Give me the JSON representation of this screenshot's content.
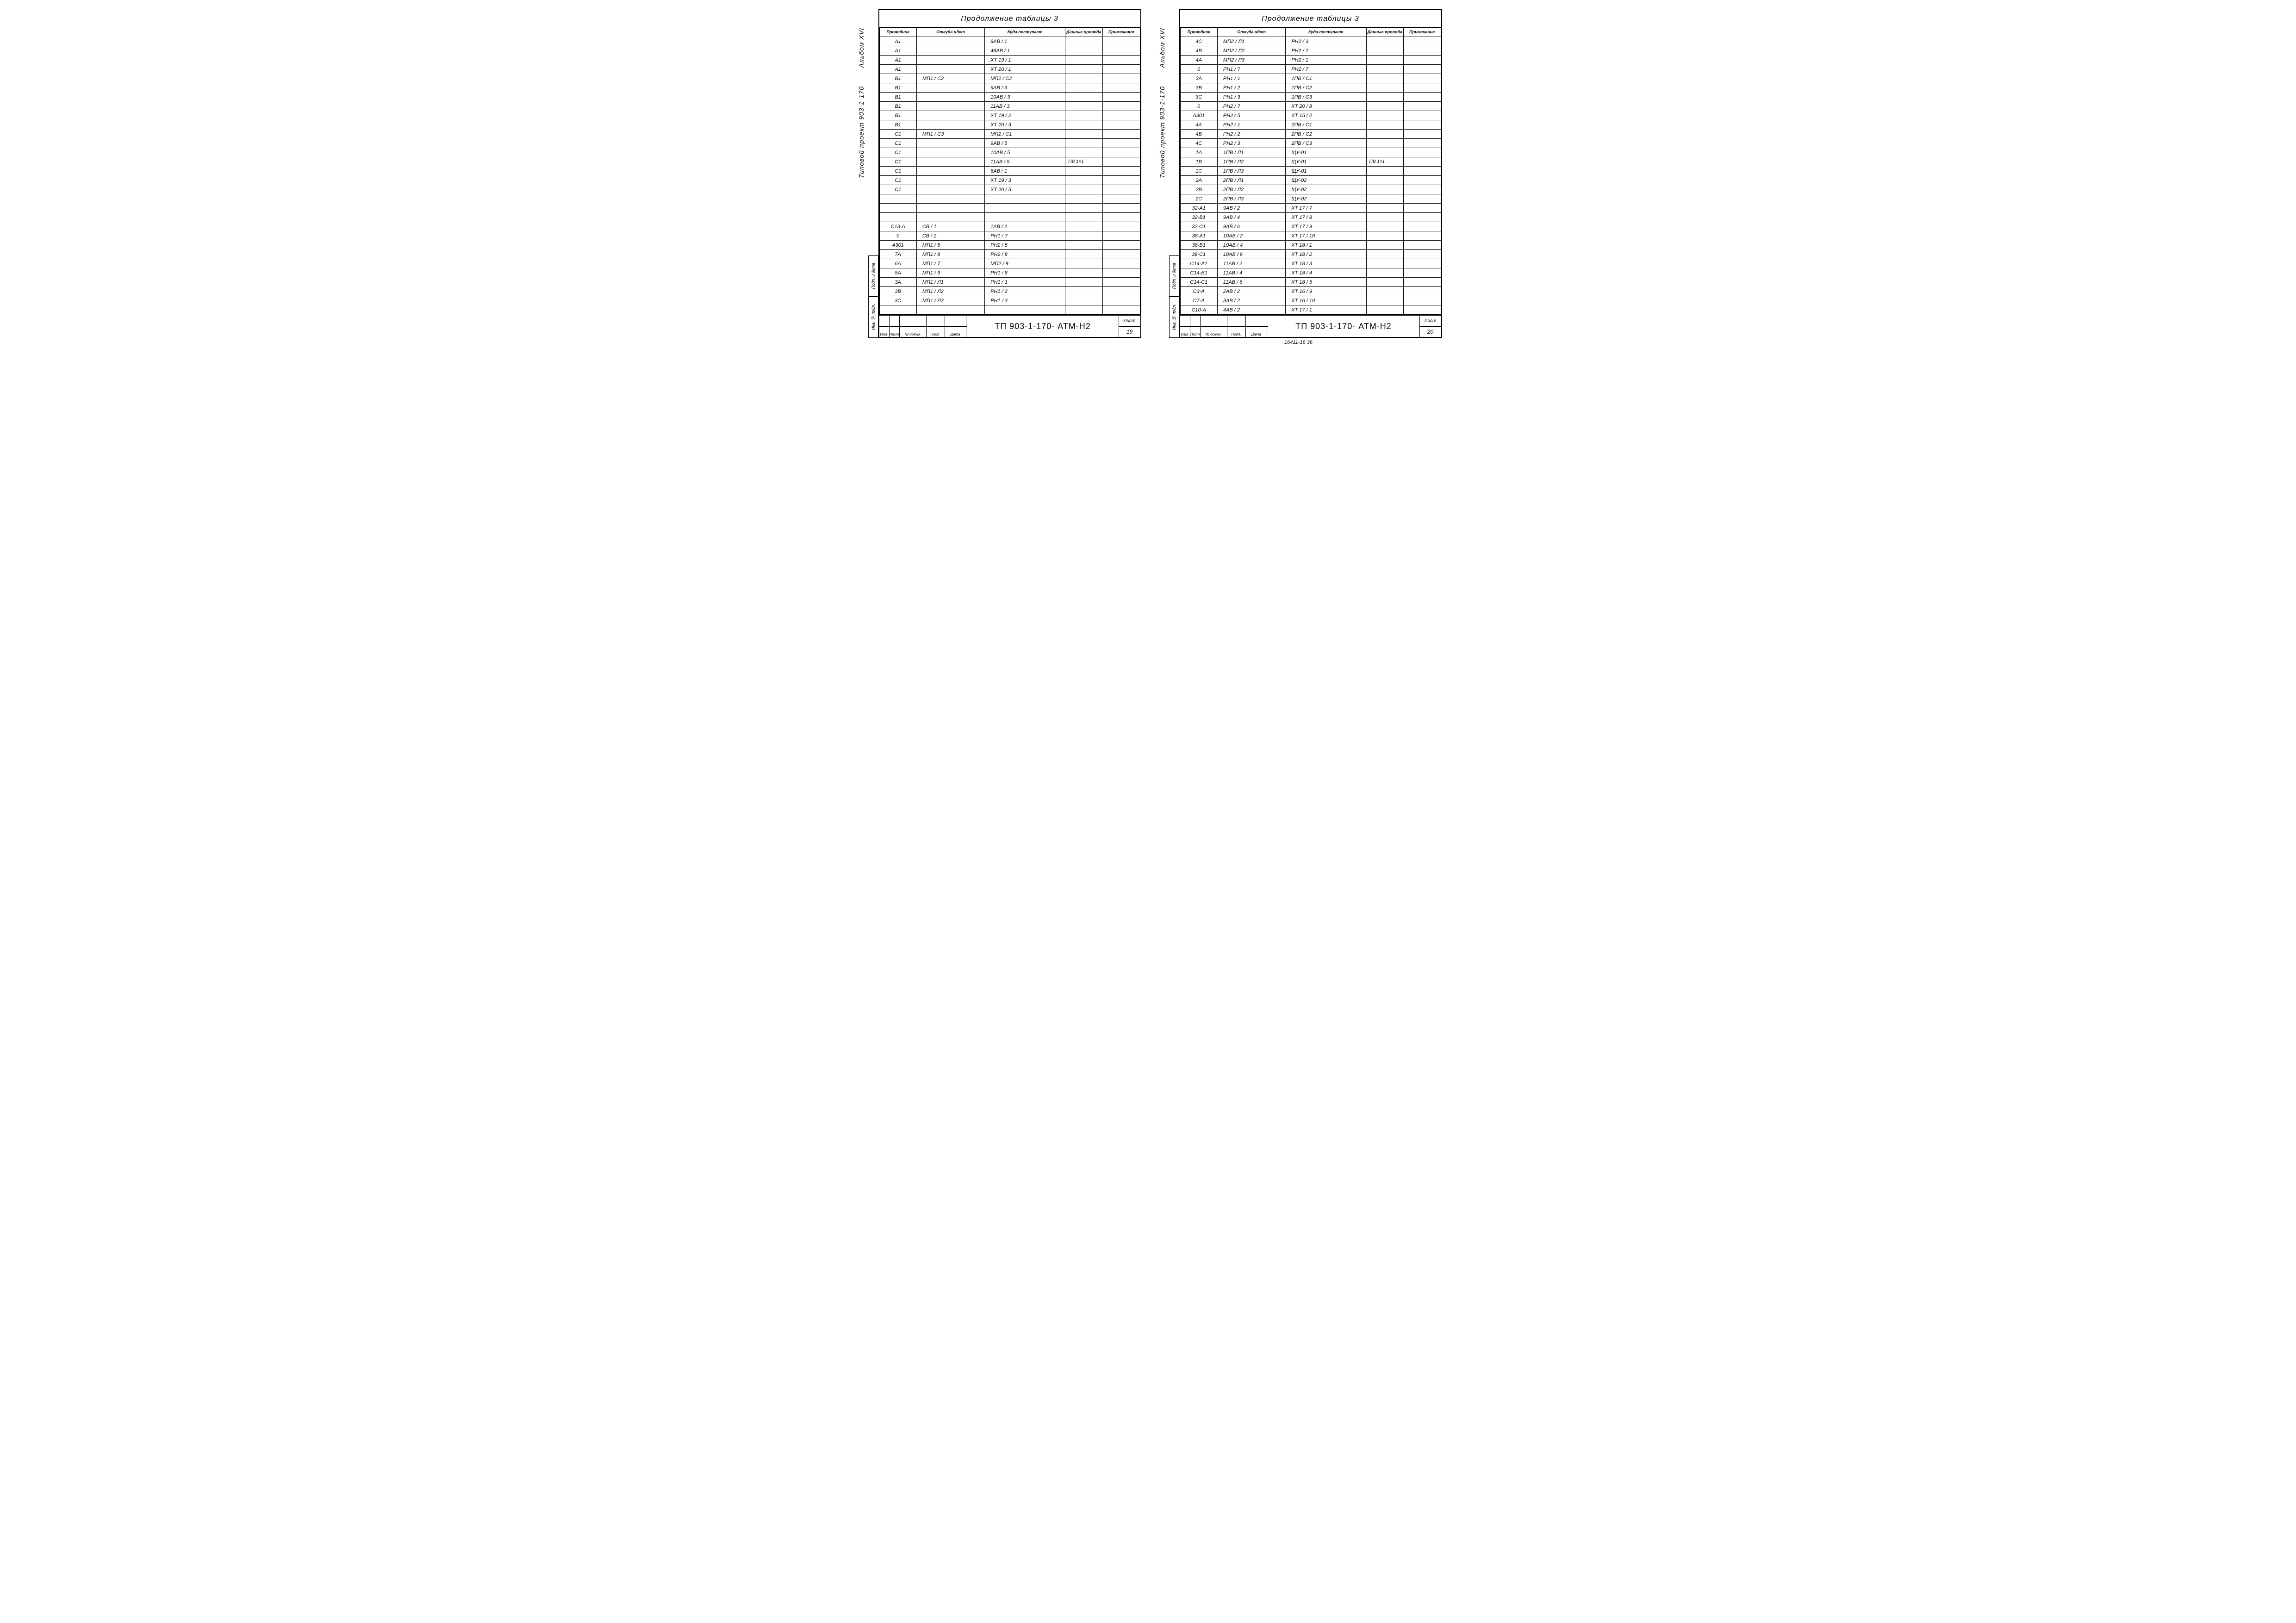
{
  "title": "Продолжение таблицы 3",
  "headers": [
    "Проводник",
    "Откуда идет",
    "Куда поступает",
    "Данные провода",
    "Примечания"
  ],
  "headers2": [
    "Проводник",
    "Откуда идет",
    "Куда поступает",
    "Данные провода",
    "Примечание"
  ],
  "side_album": "Альбом   XVI",
  "side_project": "Типовой проект 903-1-170",
  "side_box1": "Подп. и дата",
  "side_box2": "Инв. № подл.",
  "stamp_cells": [
    "Изм.",
    "Лист",
    "№ докум.",
    "Подп.",
    "Дата"
  ],
  "stamp_code": "ТП 903-1-170-   АТМ-Н2",
  "stamp_list": "Лист",
  "footer_note": "16411-16   36",
  "left": {
    "page": "19",
    "rows": [
      [
        "А1",
        "",
        "8АВ / 1",
        "",
        ""
      ],
      [
        "А1",
        "",
        "48АВ / 1",
        "",
        ""
      ],
      [
        "А1",
        "",
        "XT 19 / 1",
        "",
        ""
      ],
      [
        "А1",
        "",
        "XT 20 / 1",
        "",
        ""
      ],
      [
        "В1",
        "МП1 / С2",
        "МП2 / С2",
        "",
        ""
      ],
      [
        "В1",
        "",
        "9АВ / 3",
        "",
        ""
      ],
      [
        "В1",
        "",
        "10АВ / 3",
        "",
        ""
      ],
      [
        "В1",
        "",
        "11АВ / 3",
        "",
        ""
      ],
      [
        "В1",
        "",
        "XT 19 / 2",
        "",
        ""
      ],
      [
        "В1",
        "",
        "XT 20 / 3",
        "",
        ""
      ],
      [
        "С1",
        "МП1 / С3",
        "МП2 / С1",
        "",
        ""
      ],
      [
        "С1",
        "",
        "9АВ / 5",
        "",
        ""
      ],
      [
        "С1",
        "",
        "10АВ / 5",
        "",
        ""
      ],
      [
        "С1",
        "",
        "11АВ / 5",
        "ПВ 1×1",
        ""
      ],
      [
        "С1",
        "",
        "6АВ / 1",
        "",
        ""
      ],
      [
        "С1",
        "",
        "XT 19 / 3",
        "",
        ""
      ],
      [
        "С1",
        "",
        "XT 20 / 5",
        "",
        ""
      ],
      [
        "",
        "",
        "",
        "",
        ""
      ],
      [
        "",
        "",
        "",
        "",
        ""
      ],
      [
        "",
        "",
        "",
        "",
        ""
      ],
      [
        "С13-А",
        "СВ / 1",
        "1АВ / 2",
        "",
        ""
      ],
      [
        "0",
        "СВ / 2",
        "РН1 / 7",
        "",
        ""
      ],
      [
        "А301",
        "МП1 / 5",
        "РН2 / 5",
        "",
        ""
      ],
      [
        "7А",
        "МП1 / 8",
        "РН2 / 8",
        "",
        ""
      ],
      [
        "6А",
        "МП1 / 7",
        "МП2 / 9",
        "",
        ""
      ],
      [
        "5А",
        "МП1 / 9",
        "РН1 / 8",
        "",
        ""
      ],
      [
        "3А",
        "МП1 / Л1",
        "РН1 / 1",
        "",
        ""
      ],
      [
        "3В",
        "МП1 / Л2",
        "РН1 / 2",
        "",
        ""
      ],
      [
        "3С",
        "МП1 / Л3",
        "РН1 / 3",
        "",
        ""
      ],
      [
        "",
        "",
        "",
        "",
        ""
      ]
    ]
  },
  "right": {
    "page": "20",
    "rows": [
      [
        "4С",
        "МП2 / Л1",
        "РН2 / 3",
        "",
        ""
      ],
      [
        "4В",
        "МП2 / Л2",
        "РН2 / 2",
        "",
        ""
      ],
      [
        "4А",
        "МП2 / Л3",
        "РН2 / 1",
        "",
        ""
      ],
      [
        "0",
        "РН1 / 7",
        "РН2 / 7",
        "",
        ""
      ],
      [
        "3А",
        "РН1 / 1",
        "1ПВ / С1",
        "",
        ""
      ],
      [
        "3В",
        "РН1 / 2",
        "1ПВ / С2",
        "",
        ""
      ],
      [
        "3С",
        "РН1 / 3",
        "1ПВ / С3",
        "",
        ""
      ],
      [
        "0",
        "РН2 / 7",
        "XT 20 / 8",
        "",
        ""
      ],
      [
        "А301",
        "РН2 / 5",
        "XT 15 / 2",
        "",
        ""
      ],
      [
        "4А",
        "РН2 / 1",
        "2ПВ / С1",
        "",
        ""
      ],
      [
        "4В",
        "РН2 / 2",
        "2ПВ / С2",
        "",
        ""
      ],
      [
        "4С",
        "РН2 / 3",
        "2ПВ / С3",
        "",
        ""
      ],
      [
        "1А",
        "1ПВ / Л1",
        "ЩУ-01",
        "",
        ""
      ],
      [
        "1В",
        "1ПВ / Л2",
        "ЩУ-01",
        "ПВ 1×1",
        ""
      ],
      [
        "1С",
        "1ПВ / Л3",
        "ЩУ-01",
        "",
        ""
      ],
      [
        "2А",
        "2ПВ / Л1",
        "ЩУ-02",
        "",
        ""
      ],
      [
        "2В",
        "2ПВ / Л2",
        "ЩУ-02",
        "",
        ""
      ],
      [
        "2С",
        "2ПВ / Л3",
        "ЩУ-02",
        "",
        ""
      ],
      [
        "32-А1",
        "9АВ / 2",
        "XT 17 / 7",
        "",
        ""
      ],
      [
        "32-В1",
        "9АВ / 4",
        "XT 17 / 8",
        "",
        ""
      ],
      [
        "32-С1",
        "9АВ / 6",
        "XT 17 / 9",
        "",
        ""
      ],
      [
        "38-А1",
        "10АВ / 2",
        "XT 17 / 10",
        "",
        ""
      ],
      [
        "38-В1",
        "10АВ / 4",
        "XT 18 / 1",
        "",
        ""
      ],
      [
        "38-С1",
        "10АВ / 6",
        "XT 18 / 2",
        "",
        ""
      ],
      [
        "С14-А1",
        "11АВ / 2",
        "XT 18 / 3",
        "",
        ""
      ],
      [
        "С14-В1",
        "11АВ / 4",
        "XT 18 / 4",
        "",
        ""
      ],
      [
        "С14-С1",
        "11АВ / 6",
        "XT 18 / 5",
        "",
        ""
      ],
      [
        "С3-А",
        "2АВ / 2",
        "XT 16 / 9",
        "",
        ""
      ],
      [
        "С7-А",
        "3АВ / 2",
        "XT 16 / 10",
        "",
        ""
      ],
      [
        "С10-А",
        "4АВ / 2",
        "XT 17 / 1",
        "",
        ""
      ]
    ]
  }
}
